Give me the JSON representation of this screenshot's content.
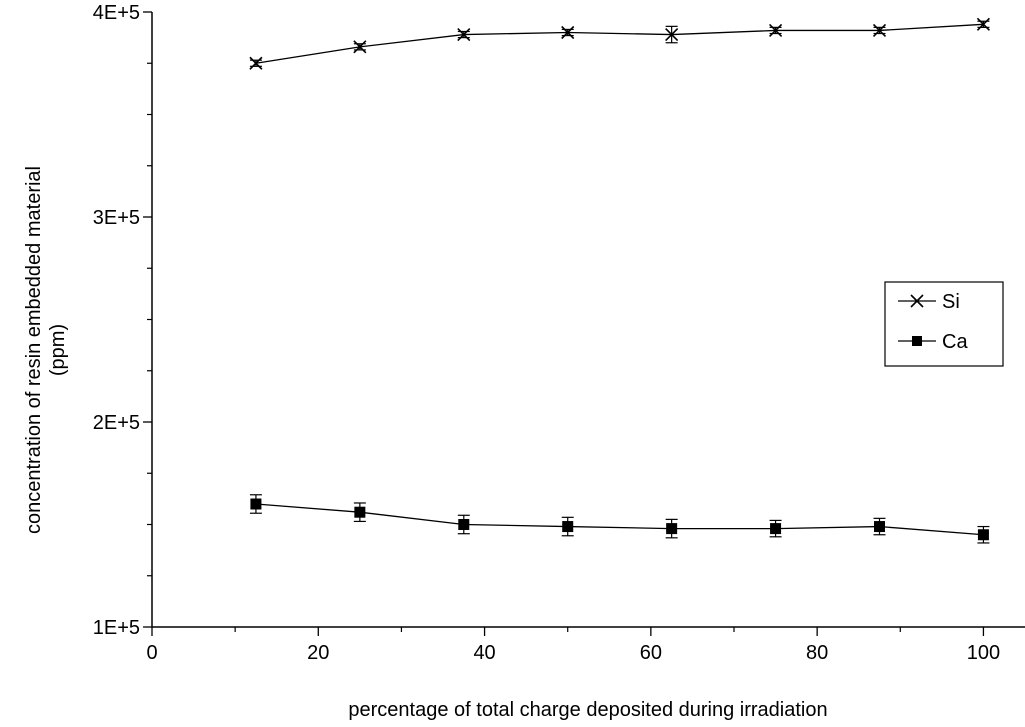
{
  "chart_data": {
    "type": "line",
    "title": "",
    "xlabel": "percentage of total charge deposited during irradiation",
    "ylabel_lines": [
      "concentration of resin embedded material",
      "(ppm)"
    ],
    "xlim": [
      0,
      105
    ],
    "ylim": [
      100000,
      400000
    ],
    "x_ticks": [
      0,
      20,
      40,
      60,
      80,
      100
    ],
    "x_tick_labels": [
      "0",
      "20",
      "40",
      "60",
      "80",
      "100"
    ],
    "y_ticks": [
      100000,
      200000,
      300000,
      400000
    ],
    "y_tick_labels": [
      "1E+5",
      "2E+5",
      "3E+5",
      "4E+5"
    ],
    "grid": false,
    "legend_position": "right",
    "series": [
      {
        "name": "Si",
        "marker": "x",
        "x": [
          12.5,
          25,
          37.5,
          50,
          62.5,
          75,
          87.5,
          100
        ],
        "y": [
          375000,
          383000,
          389000,
          390000,
          389000,
          391000,
          391000,
          394000
        ],
        "error": [
          1500,
          1500,
          1500,
          1500,
          4000,
          1500,
          1500,
          1500
        ]
      },
      {
        "name": "Ca",
        "marker": "filled-square",
        "x": [
          12.5,
          25,
          37.5,
          50,
          62.5,
          75,
          87.5,
          100
        ],
        "y": [
          160000,
          156000,
          150000,
          149000,
          148000,
          148000,
          149000,
          145000
        ],
        "error": [
          4500,
          4500,
          4500,
          4500,
          4500,
          4000,
          4000,
          4000
        ]
      }
    ]
  }
}
